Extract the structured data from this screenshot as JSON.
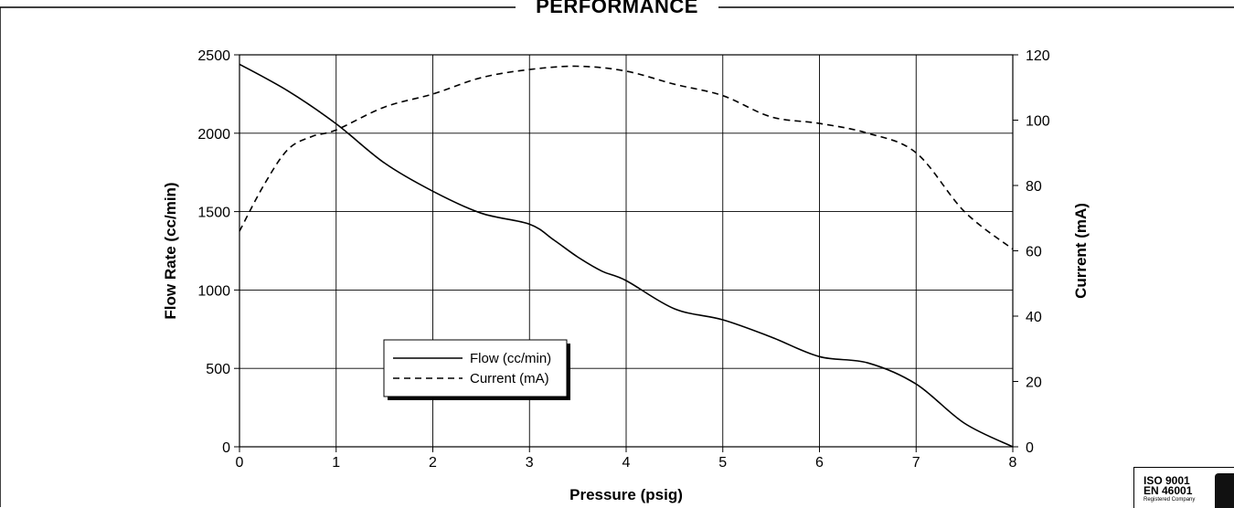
{
  "chart_data": {
    "type": "line",
    "title": "PERFORMANCE",
    "xlabel": "Pressure (psig)",
    "ylabel": "Flow Rate (cc/min)",
    "y2label": "Current (mA)",
    "xlim": [
      0,
      8
    ],
    "ylim": [
      0,
      2500
    ],
    "y2lim": [
      0,
      120
    ],
    "xticks": [
      0,
      1,
      2,
      3,
      4,
      5,
      6,
      7,
      8
    ],
    "yticks": [
      0,
      500,
      1000,
      1500,
      2000,
      2500
    ],
    "y2ticks": [
      0,
      20,
      40,
      60,
      80,
      100,
      120
    ],
    "grid": true,
    "legend_position": "lower-left",
    "series": [
      {
        "name": "Flow (cc/min)",
        "axis": "left",
        "line_style": "solid",
        "x": [
          0,
          0.5,
          1,
          1.5,
          2,
          2.5,
          3,
          3.25,
          3.5,
          3.75,
          4,
          4.5,
          5,
          5.5,
          6,
          6.5,
          7,
          7.5,
          8
        ],
        "y": [
          2440,
          2270,
          2060,
          1810,
          1630,
          1490,
          1420,
          1320,
          1210,
          1120,
          1060,
          880,
          810,
          700,
          575,
          535,
          400,
          150,
          0
        ]
      },
      {
        "name": "Current (mA)",
        "axis": "right",
        "line_style": "dashed",
        "x": [
          0,
          0.25,
          0.5,
          0.75,
          1,
          1.5,
          2,
          2.5,
          3,
          3.5,
          4,
          4.5,
          5,
          5.5,
          6,
          6.5,
          7,
          7.5,
          8
        ],
        "y": [
          66,
          80,
          91,
          95,
          97,
          104,
          108,
          113,
          115.5,
          116.5,
          115,
          111,
          107.5,
          101,
          99,
          96,
          90,
          72,
          60.5
        ]
      }
    ]
  },
  "cert": {
    "line1": "ISO 9001",
    "line2": "EN 46001",
    "line3": "Registered Company"
  }
}
